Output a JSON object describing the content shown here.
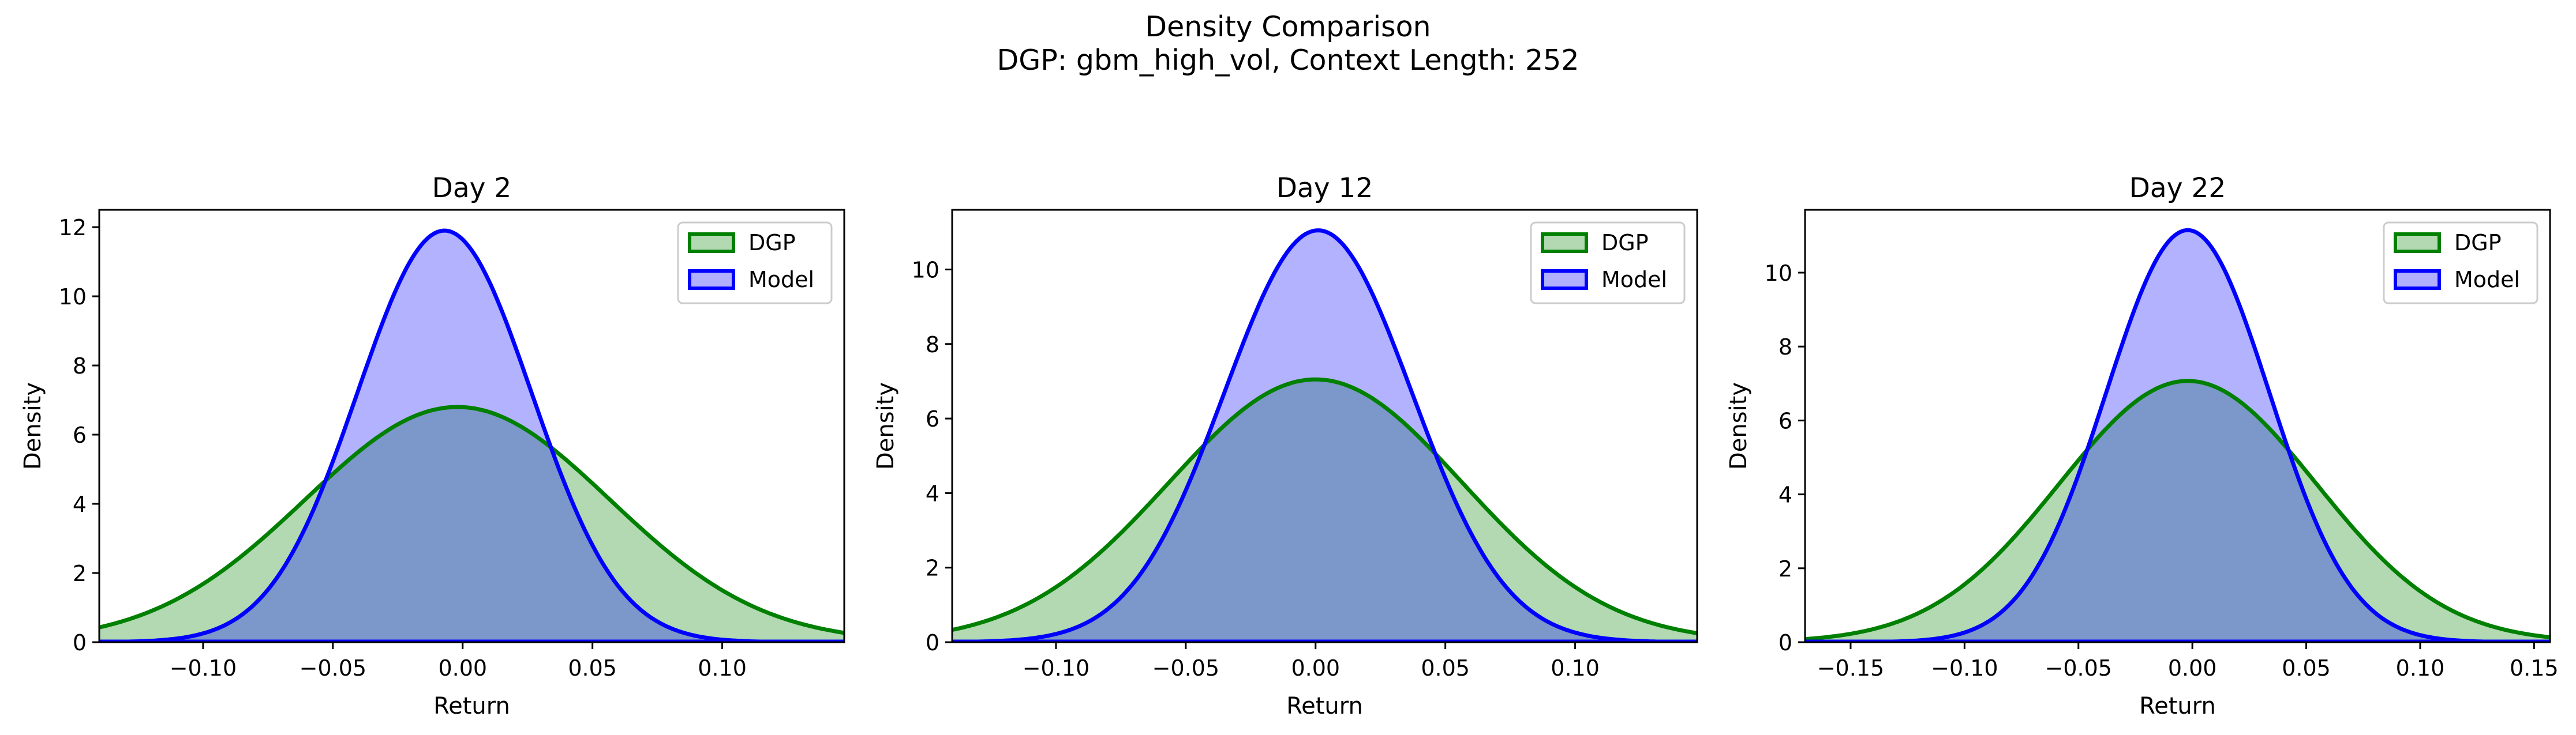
{
  "figure": {
    "title": "Density Comparison",
    "subtitle": "DGP: gbm_high_vol, Context Length: 252"
  },
  "colors": {
    "dgp": "#008000",
    "model": "#0000ff",
    "dgp_fill": "#b3d9b3",
    "model_fill": "#b0b0fe",
    "overlap": "#7d97c8"
  },
  "chart_data": [
    {
      "type": "area",
      "title": "Day 2",
      "xlabel": "Return",
      "ylabel": "Density",
      "xlim": [
        -0.14,
        0.147
      ],
      "ylim": [
        0,
        12.5
      ],
      "xticks": [
        -0.1,
        -0.05,
        0.0,
        0.05,
        0.1
      ],
      "xtick_labels": [
        "−0.10",
        "−0.05",
        "0.00",
        "0.05",
        "0.10"
      ],
      "yticks": [
        0,
        2,
        4,
        6,
        8,
        10,
        12
      ],
      "grid": false,
      "legend_position": "top-right",
      "series": [
        {
          "name": "DGP",
          "distribution": "normal",
          "mean": -0.002,
          "peak_density": 6.8
        },
        {
          "name": "Model",
          "distribution": "normal",
          "mean": -0.007,
          "peak_density": 11.9
        }
      ]
    },
    {
      "type": "area",
      "title": "Day 12",
      "xlabel": "Return",
      "ylabel": "Density",
      "xlim": [
        -0.14,
        0.147
      ],
      "ylim": [
        0,
        11.6
      ],
      "xticks": [
        -0.1,
        -0.05,
        0.0,
        0.05,
        0.1
      ],
      "xtick_labels": [
        "−0.10",
        "−0.05",
        "0.00",
        "0.05",
        "0.10"
      ],
      "yticks": [
        0,
        2,
        4,
        6,
        8,
        10
      ],
      "grid": false,
      "legend_position": "top-right",
      "series": [
        {
          "name": "DGP",
          "distribution": "normal",
          "mean": 0.0,
          "peak_density": 7.05
        },
        {
          "name": "Model",
          "distribution": "normal",
          "mean": 0.001,
          "peak_density": 11.05
        }
      ]
    },
    {
      "type": "area",
      "title": "Day 22",
      "xlabel": "Return",
      "ylabel": "Density",
      "xlim": [
        -0.17,
        0.157
      ],
      "ylim": [
        0,
        11.7
      ],
      "xticks": [
        -0.15,
        -0.1,
        -0.05,
        0.0,
        0.05,
        0.1,
        0.15
      ],
      "xtick_labels": [
        "−0.15",
        "−0.10",
        "−0.05",
        "0.00",
        "0.05",
        "0.10",
        "0.15"
      ],
      "yticks": [
        0,
        2,
        4,
        6,
        8,
        10
      ],
      "grid": false,
      "legend_position": "top-right",
      "series": [
        {
          "name": "DGP",
          "distribution": "normal",
          "mean": -0.002,
          "peak_density": 7.07
        },
        {
          "name": "Model",
          "distribution": "normal",
          "mean": -0.002,
          "peak_density": 11.15
        }
      ]
    }
  ]
}
